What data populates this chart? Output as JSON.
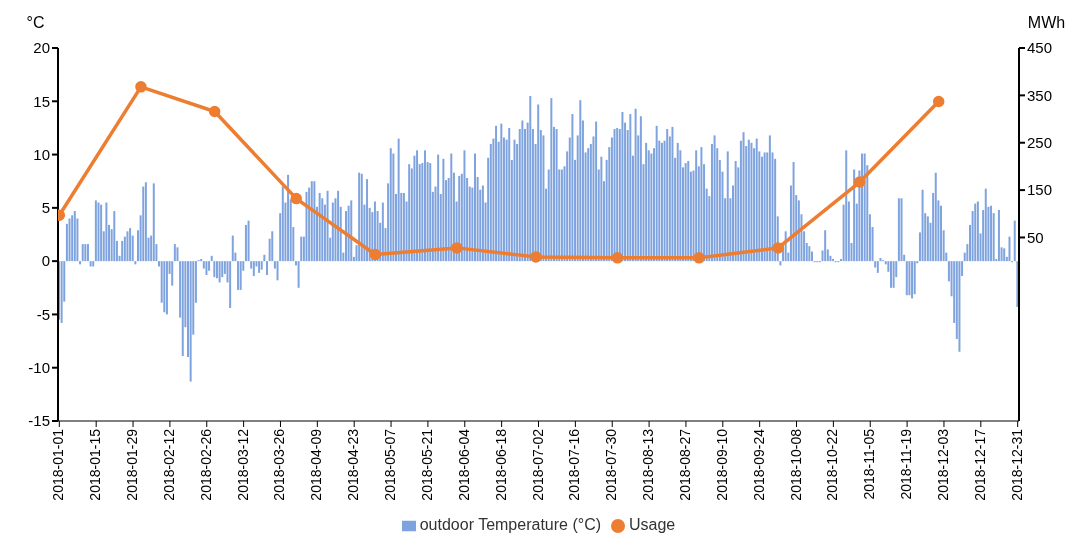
{
  "chart_data": {
    "type": "bar",
    "ylabel": "°C",
    "y2label": "MWh",
    "legend": "bottom",
    "ylim": [
      -15,
      20
    ],
    "yticks": [
      -15,
      -10,
      -5,
      0,
      5,
      10,
      15,
      20
    ],
    "y2lim": [
      -337.5,
      450
    ],
    "y2ticks": [
      50,
      150,
      250,
      350,
      450
    ],
    "xlim": [
      "2017-12-31T12:00",
      "2018-12-31T12:00"
    ],
    "xticks": [
      "2018-01-01",
      "2018-01-15",
      "2018-01-29",
      "2018-02-12",
      "2018-02-26",
      "2018-03-12",
      "2018-03-26",
      "2018-04-09",
      "2018-04-23",
      "2018-05-07",
      "2018-05-21",
      "2018-06-04",
      "2018-06-18",
      "2018-07-02",
      "2018-07-16",
      "2018-07-30",
      "2018-08-13",
      "2018-08-27",
      "2018-09-10",
      "2018-09-24",
      "2018-10-08",
      "2018-10-22",
      "2018-11-05",
      "2018-11-19",
      "2018-12-03",
      "2018-12-17",
      "2018-12-31"
    ],
    "x": [
      "2018-01-01",
      "2018-01-02",
      "2018-01-03",
      "2018-01-04",
      "2018-01-05",
      "2018-01-06",
      "2018-01-07",
      "2018-01-08",
      "2018-01-09",
      "2018-01-10",
      "2018-01-11",
      "2018-01-12",
      "2018-01-13",
      "2018-01-14",
      "2018-01-15",
      "2018-01-16",
      "2018-01-17",
      "2018-01-18",
      "2018-01-19",
      "2018-01-20",
      "2018-01-21",
      "2018-01-22",
      "2018-01-23",
      "2018-01-24",
      "2018-01-25",
      "2018-01-26",
      "2018-01-27",
      "2018-01-28",
      "2018-01-29",
      "2018-01-30",
      "2018-01-31",
      "2018-02-01",
      "2018-02-02",
      "2018-02-03",
      "2018-02-04",
      "2018-02-05",
      "2018-02-06",
      "2018-02-07",
      "2018-02-08",
      "2018-02-09",
      "2018-02-10",
      "2018-02-11",
      "2018-02-12",
      "2018-02-13",
      "2018-02-14",
      "2018-02-15",
      "2018-02-16",
      "2018-02-17",
      "2018-02-18",
      "2018-02-19",
      "2018-02-20",
      "2018-02-21",
      "2018-02-22",
      "2018-02-23",
      "2018-02-24",
      "2018-02-25",
      "2018-02-26",
      "2018-02-27",
      "2018-02-28",
      "2018-03-01",
      "2018-03-02",
      "2018-03-03",
      "2018-03-04",
      "2018-03-05",
      "2018-03-06",
      "2018-03-07",
      "2018-03-08",
      "2018-03-09",
      "2018-03-10",
      "2018-03-11",
      "2018-03-12",
      "2018-03-13",
      "2018-03-14",
      "2018-03-15",
      "2018-03-16",
      "2018-03-17",
      "2018-03-18",
      "2018-03-19",
      "2018-03-20",
      "2018-03-21",
      "2018-03-22",
      "2018-03-23",
      "2018-03-24",
      "2018-03-25",
      "2018-03-26",
      "2018-03-27",
      "2018-03-28",
      "2018-03-29",
      "2018-03-30",
      "2018-03-31",
      "2018-04-01",
      "2018-04-02",
      "2018-04-03",
      "2018-04-04",
      "2018-04-05",
      "2018-04-06",
      "2018-04-07",
      "2018-04-08",
      "2018-04-09",
      "2018-04-10",
      "2018-04-11",
      "2018-04-12",
      "2018-04-13",
      "2018-04-14",
      "2018-04-15",
      "2018-04-16",
      "2018-04-17",
      "2018-04-18",
      "2018-04-19",
      "2018-04-20",
      "2018-04-21",
      "2018-04-22",
      "2018-04-23",
      "2018-04-24",
      "2018-04-25",
      "2018-04-26",
      "2018-04-27",
      "2018-04-28",
      "2018-04-29",
      "2018-04-30",
      "2018-05-01",
      "2018-05-02",
      "2018-05-03",
      "2018-05-04",
      "2018-05-05",
      "2018-05-06",
      "2018-05-07",
      "2018-05-08",
      "2018-05-09",
      "2018-05-10",
      "2018-05-11",
      "2018-05-12",
      "2018-05-13",
      "2018-05-14",
      "2018-05-15",
      "2018-05-16",
      "2018-05-17",
      "2018-05-18",
      "2018-05-19",
      "2018-05-20",
      "2018-05-21",
      "2018-05-22",
      "2018-05-23",
      "2018-05-24",
      "2018-05-25",
      "2018-05-26",
      "2018-05-27",
      "2018-05-28",
      "2018-05-29",
      "2018-05-30",
      "2018-05-31",
      "2018-06-01",
      "2018-06-02",
      "2018-06-03",
      "2018-06-04",
      "2018-06-05",
      "2018-06-06",
      "2018-06-07",
      "2018-06-08",
      "2018-06-09",
      "2018-06-10",
      "2018-06-11",
      "2018-06-12",
      "2018-06-13",
      "2018-06-14",
      "2018-06-15",
      "2018-06-16",
      "2018-06-17",
      "2018-06-18",
      "2018-06-19",
      "2018-06-20",
      "2018-06-21",
      "2018-06-22",
      "2018-06-23",
      "2018-06-24",
      "2018-06-25",
      "2018-06-26",
      "2018-06-27",
      "2018-06-28",
      "2018-06-29",
      "2018-06-30",
      "2018-07-01",
      "2018-07-02",
      "2018-07-03",
      "2018-07-04",
      "2018-07-05",
      "2018-07-06",
      "2018-07-07",
      "2018-07-08",
      "2018-07-09",
      "2018-07-10",
      "2018-07-11",
      "2018-07-12",
      "2018-07-13",
      "2018-07-14",
      "2018-07-15",
      "2018-07-16",
      "2018-07-17",
      "2018-07-18",
      "2018-07-19",
      "2018-07-20",
      "2018-07-21",
      "2018-07-22",
      "2018-07-23",
      "2018-07-24",
      "2018-07-25",
      "2018-07-26",
      "2018-07-27",
      "2018-07-28",
      "2018-07-29",
      "2018-07-30",
      "2018-07-31",
      "2018-08-01",
      "2018-08-02",
      "2018-08-03",
      "2018-08-04",
      "2018-08-05",
      "2018-08-06",
      "2018-08-07",
      "2018-08-08",
      "2018-08-09",
      "2018-08-10",
      "2018-08-11",
      "2018-08-12",
      "2018-08-13",
      "2018-08-14",
      "2018-08-15",
      "2018-08-16",
      "2018-08-17",
      "2018-08-18",
      "2018-08-19",
      "2018-08-20",
      "2018-08-21",
      "2018-08-22",
      "2018-08-23",
      "2018-08-24",
      "2018-08-25",
      "2018-08-26",
      "2018-08-27",
      "2018-08-28",
      "2018-08-29",
      "2018-08-30",
      "2018-08-31",
      "2018-09-01",
      "2018-09-02",
      "2018-09-03",
      "2018-09-04",
      "2018-09-05",
      "2018-09-06",
      "2018-09-07",
      "2018-09-08",
      "2018-09-09",
      "2018-09-10",
      "2018-09-11",
      "2018-09-12",
      "2018-09-13",
      "2018-09-14",
      "2018-09-15",
      "2018-09-16",
      "2018-09-17",
      "2018-09-18",
      "2018-09-19",
      "2018-09-20",
      "2018-09-21",
      "2018-09-22",
      "2018-09-23",
      "2018-09-24",
      "2018-09-25",
      "2018-09-26",
      "2018-09-27",
      "2018-09-28",
      "2018-09-29",
      "2018-09-30",
      "2018-10-01",
      "2018-10-02",
      "2018-10-03",
      "2018-10-04",
      "2018-10-05",
      "2018-10-06",
      "2018-10-07",
      "2018-10-08",
      "2018-10-09",
      "2018-10-10",
      "2018-10-11",
      "2018-10-12",
      "2018-10-13",
      "2018-10-14",
      "2018-10-15",
      "2018-10-16",
      "2018-10-17",
      "2018-10-18",
      "2018-10-19",
      "2018-10-20",
      "2018-10-21",
      "2018-10-22",
      "2018-10-23",
      "2018-10-24",
      "2018-10-25",
      "2018-10-26",
      "2018-10-27",
      "2018-10-28",
      "2018-10-29",
      "2018-10-30",
      "2018-10-31",
      "2018-11-01",
      "2018-11-02",
      "2018-11-03",
      "2018-11-04",
      "2018-11-05",
      "2018-11-06",
      "2018-11-07",
      "2018-11-08",
      "2018-11-09",
      "2018-11-10",
      "2018-11-11",
      "2018-11-12",
      "2018-11-13",
      "2018-11-14",
      "2018-11-15",
      "2018-11-16",
      "2018-11-17",
      "2018-11-18",
      "2018-11-19",
      "2018-11-20",
      "2018-11-21",
      "2018-11-22",
      "2018-11-23",
      "2018-11-24",
      "2018-11-25",
      "2018-11-26",
      "2018-11-27",
      "2018-11-28",
      "2018-11-29",
      "2018-11-30",
      "2018-12-01",
      "2018-12-02",
      "2018-12-03",
      "2018-12-04",
      "2018-12-05",
      "2018-12-06",
      "2018-12-07",
      "2018-12-08",
      "2018-12-09",
      "2018-12-10",
      "2018-12-11",
      "2018-12-12",
      "2018-12-13",
      "2018-12-14",
      "2018-12-15",
      "2018-12-16",
      "2018-12-17",
      "2018-12-18",
      "2018-12-19",
      "2018-12-20",
      "2018-12-21",
      "2018-12-22",
      "2018-12-23",
      "2018-12-24",
      "2018-12-25",
      "2018-12-26",
      "2018-12-27",
      "2018-12-28",
      "2018-12-29",
      "2018-12-30",
      "2018-12-31"
    ],
    "series": [
      {
        "name": "outdoor Temperature (°C)",
        "color": "#7fa3de",
        "values": [
          -5.5,
          -5.8,
          -3.8,
          3.5,
          4,
          4.3,
          4.7,
          4,
          -0.3,
          1.6,
          1.6,
          1.6,
          -0.5,
          -0.5,
          5.7,
          5.5,
          5.3,
          2.8,
          5.5,
          3.4,
          3,
          4.7,
          1.9,
          0.5,
          1.9,
          2.3,
          2.8,
          3.1,
          2.4,
          -0.3,
          2.9,
          4.3,
          7,
          7.4,
          2.2,
          2.4,
          7.3,
          1.6,
          -0.5,
          -3.9,
          -4.8,
          -5,
          -1.2,
          -2.3,
          1.6,
          1.3,
          -5.3,
          -8.9,
          -6.2,
          -9,
          -11.3,
          -6.9,
          -3.9,
          0.1,
          0.2,
          -0.7,
          -1.3,
          -0.9,
          0.5,
          -1.5,
          -1.6,
          -2,
          -1.5,
          -1.2,
          -2,
          -4.4,
          2.4,
          0.8,
          -2.7,
          -2.7,
          -0.9,
          3.4,
          3.8,
          -0.7,
          -1.4,
          -0.5,
          -1.1,
          -0.8,
          0.6,
          -1.3,
          2.1,
          2.8,
          -0.7,
          -1.8,
          4.5,
          7,
          5.5,
          8.1,
          5.8,
          3.2,
          -0.4,
          -2.5,
          2.3,
          2.3,
          6.5,
          6.9,
          7.5,
          7.5,
          5.1,
          6.4,
          5.9,
          5.3,
          6.6,
          2.2,
          5.5,
          5.9,
          6.6,
          5.1,
          0.8,
          4.7,
          5.2,
          5.7,
          0.4,
          1.5,
          8.3,
          8.2,
          5.3,
          7.7,
          5,
          4.6,
          5.6,
          4.7,
          3.6,
          5.5,
          3.1,
          7.3,
          10.6,
          10.1,
          6.3,
          11.5,
          6.4,
          6.4,
          5.6,
          9.1,
          8.7,
          9.9,
          10.4,
          9.1,
          9.2,
          10.4,
          9.3,
          9.2,
          6.5,
          7,
          10,
          6.3,
          9.6,
          7.6,
          7.8,
          10.1,
          8.3,
          5.6,
          8,
          8.2,
          10.4,
          7.8,
          7,
          6.9,
          10.1,
          7.9,
          6.7,
          7.1,
          5.5,
          9.7,
          11,
          11.5,
          12.7,
          11.2,
          12.9,
          11.6,
          11.4,
          12.5,
          9.5,
          11.4,
          11,
          12.4,
          13.2,
          12.4,
          13,
          15.5,
          12.4,
          11,
          14.7,
          12.3,
          11.8,
          6.8,
          8.6,
          15.3,
          12.6,
          12.4,
          8.6,
          8.6,
          8.9,
          10.3,
          11.6,
          13.8,
          9.5,
          11.8,
          15.1,
          13.2,
          10.2,
          10.6,
          11,
          11.7,
          13.1,
          8.6,
          9.8,
          7.5,
          9.5,
          10.7,
          11.6,
          12.4,
          12.5,
          12.4,
          14,
          13,
          12.3,
          13.8,
          9.9,
          14.3,
          11.8,
          13.6,
          9.1,
          11.1,
          10.4,
          10.1,
          10.6,
          12.7,
          11.3,
          11.1,
          11.3,
          12.4,
          11.7,
          12.6,
          9.7,
          11.1,
          10.4,
          8.8,
          9.2,
          9.4,
          8.4,
          8.5,
          10.4,
          8.9,
          10.7,
          9.1,
          6.8,
          6.1,
          11,
          11.8,
          10.6,
          9.5,
          8.4,
          5.9,
          10.3,
          5.9,
          7.1,
          9.4,
          8.8,
          11.3,
          12.1,
          10.8,
          11.4,
          11.1,
          10.6,
          11.5,
          10.3,
          9.8,
          10.2,
          10.2,
          11.8,
          10.2,
          9.6,
          4.2,
          -0.4,
          1.5,
          2.8,
          0.8,
          7.1,
          9.3,
          6.2,
          5.7,
          4.4,
          2.8,
          1.7,
          1.4,
          0.9,
          -0.1,
          -0.1,
          -0.1,
          1,
          2.9,
          1.1,
          0.5,
          0.2,
          -0.1,
          -0.1,
          0.2,
          5.3,
          10.4,
          5.6,
          1.7,
          8.6,
          5.4,
          8.5,
          10.1,
          10.1,
          9,
          4.4,
          3.2,
          -0.6,
          -1.1,
          0.3,
          0.1,
          -0.3,
          -1,
          -2.5,
          -2.5,
          -1.5,
          5.9,
          5.9,
          0.6,
          -3.2,
          -3.2,
          -3.5,
          -3.1,
          -0.2,
          2.7,
          6.7,
          4.5,
          4.2,
          3.6,
          6.4,
          8.3,
          5.7,
          5.2,
          2.9,
          0.8,
          -1.9,
          -3.3,
          -5.8,
          -7.3,
          -8.5,
          -1.4,
          0.8,
          1.6,
          3.4,
          4.7,
          5.4,
          5.6,
          2.6,
          4.8,
          6.8,
          5.1,
          5.2,
          4.5,
          0.2,
          4.8,
          1.3,
          1.2,
          0.4,
          2.3,
          -0.1,
          3.8,
          -4.3
        ]
      },
      {
        "name": "Usage",
        "type": "line",
        "axis": "y2",
        "color": "#ed7d31",
        "marker": "circle",
        "x": [
          "2018-01-01",
          "2018-02-01",
          "2018-03-01",
          "2018-04-01",
          "2018-05-01",
          "2018-06-01",
          "2018-07-01",
          "2018-08-01",
          "2018-09-01",
          "2018-10-01",
          "2018-11-01",
          "2018-12-01"
        ],
        "values": [
          97,
          368,
          316,
          132,
          14,
          28,
          9,
          7,
          7,
          28,
          167,
          337
        ]
      }
    ]
  }
}
